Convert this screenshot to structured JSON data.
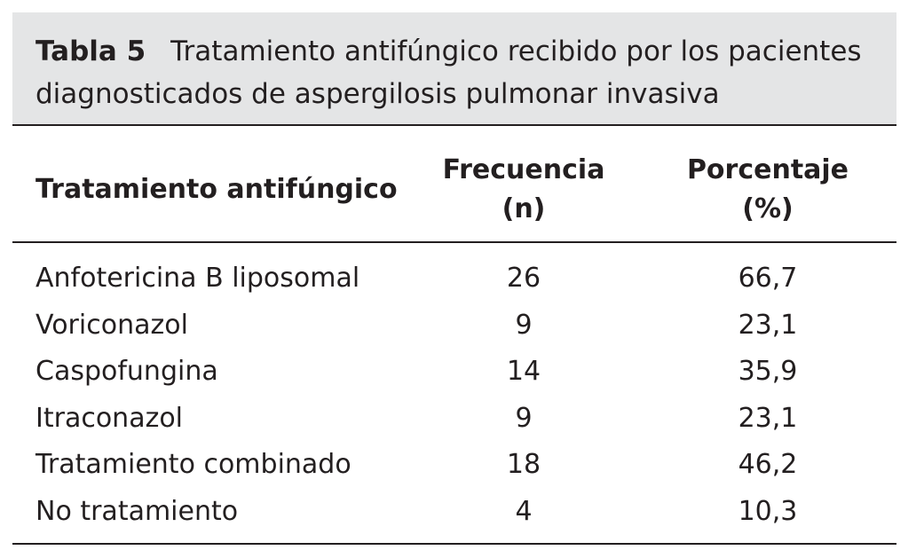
{
  "caption": {
    "label": "Tabla 5",
    "text": "Tratamiento antifúngico recibido por los pacientes diagnosticados de aspergilosis pulmonar invasiva"
  },
  "columns": {
    "treatment": "Tratamiento antifúngico",
    "frequency": [
      "Frecuencia",
      "(n)"
    ],
    "percentage": [
      "Porcentaje",
      "(%)"
    ]
  },
  "rows": [
    {
      "treatment": "Anfotericina B liposomal",
      "frequency": "26",
      "percentage": "66,7"
    },
    {
      "treatment": "Voriconazol",
      "frequency": "9",
      "percentage": "23,1"
    },
    {
      "treatment": "Caspofungina",
      "frequency": "14",
      "percentage": "35,9"
    },
    {
      "treatment": "Itraconazol",
      "frequency": "9",
      "percentage": "23,1"
    },
    {
      "treatment": "Tratamiento combinado",
      "frequency": "18",
      "percentage": "46,2"
    },
    {
      "treatment": "No tratamiento",
      "frequency": "4",
      "percentage": "10,3"
    }
  ]
}
